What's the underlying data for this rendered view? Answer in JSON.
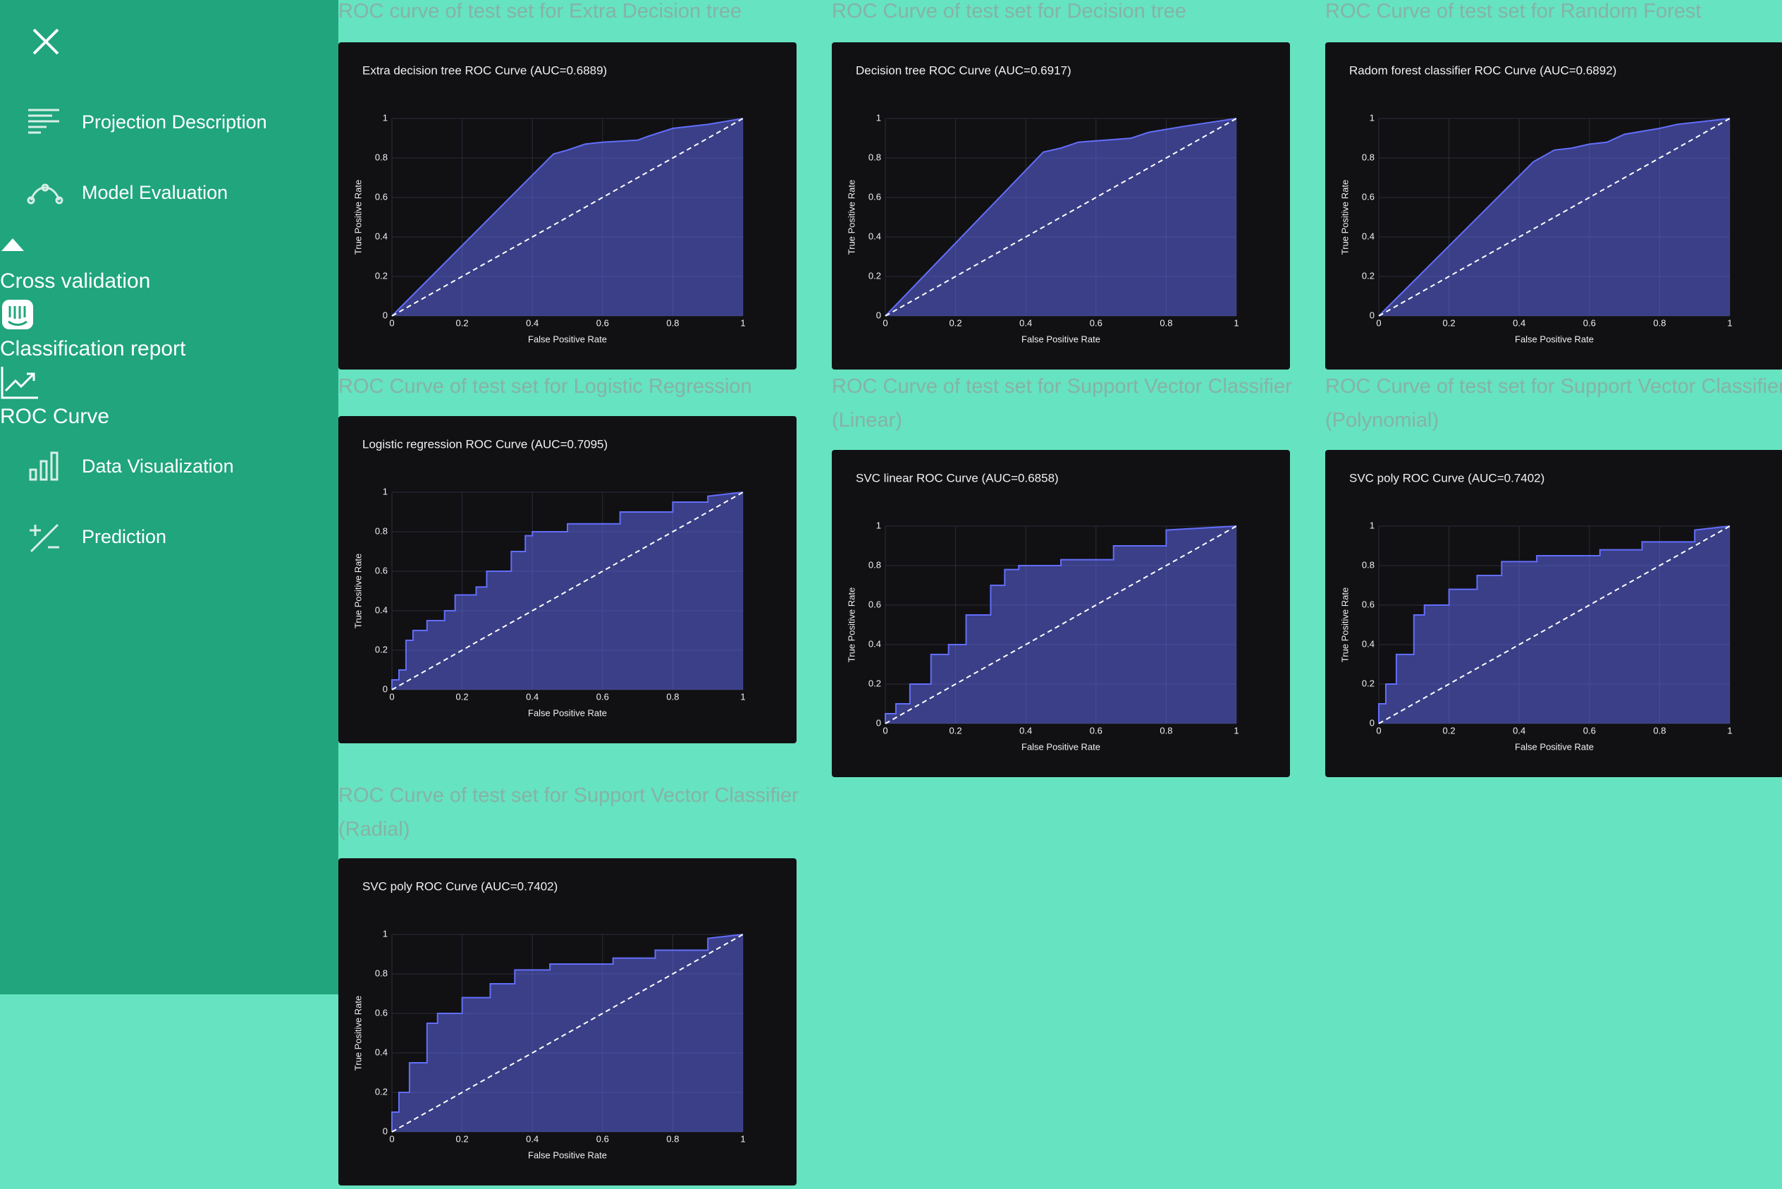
{
  "sidebar": {
    "items": [
      "Projection Description",
      "Model Evaluation",
      "Cross validation",
      "Classification report",
      "ROC Curve",
      "Data Visualization",
      "Prediction"
    ]
  },
  "chart_data": [
    {
      "type": "area",
      "heading": "ROC curve of test set for Extra Decision tree",
      "title": "Extra decision tree ROC Curve (AUC=0.6889)",
      "xlabel": "False Positive Rate",
      "ylabel": "True Positive Rate",
      "color": "#636efa",
      "grid": true,
      "xlim": [
        0,
        1
      ],
      "ylim": [
        0,
        1
      ],
      "xticks": [
        0,
        0.2,
        0.4,
        0.6,
        0.8,
        1
      ],
      "yticks": [
        0,
        0.2,
        0.4,
        0.6,
        0.8,
        1
      ],
      "series": [
        {
          "x": [
            0,
            0.46,
            0.5,
            0.55,
            0.6,
            0.7,
            0.73,
            0.8,
            0.9,
            1
          ],
          "values": [
            0,
            0.82,
            0.84,
            0.87,
            0.88,
            0.89,
            0.91,
            0.95,
            0.97,
            1
          ]
        }
      ]
    },
    {
      "type": "area",
      "heading": "ROC Curve of test set for Decision tree",
      "title": "Decision tree ROC Curve (AUC=0.6917)",
      "xlabel": "False Positive Rate",
      "ylabel": "True Positive Rate",
      "color": "#636efa",
      "grid": true,
      "xlim": [
        0,
        1
      ],
      "ylim": [
        0,
        1
      ],
      "xticks": [
        0,
        0.2,
        0.4,
        0.6,
        0.8,
        1
      ],
      "yticks": [
        0,
        0.2,
        0.4,
        0.6,
        0.8,
        1
      ],
      "series": [
        {
          "x": [
            0,
            0.45,
            0.5,
            0.55,
            0.7,
            0.75,
            0.85,
            1
          ],
          "values": [
            0,
            0.83,
            0.85,
            0.88,
            0.9,
            0.93,
            0.96,
            1
          ]
        }
      ]
    },
    {
      "type": "area",
      "heading": "ROC Curve of test set for Random Forest",
      "title": "Radom forest classifier ROC Curve (AUC=0.6892)",
      "xlabel": "False Positive Rate",
      "ylabel": "True Positive Rate",
      "color": "#636efa",
      "grid": true,
      "xlim": [
        0,
        1
      ],
      "ylim": [
        0,
        1
      ],
      "xticks": [
        0,
        0.2,
        0.4,
        0.6,
        0.8,
        1
      ],
      "yticks": [
        0,
        0.2,
        0.4,
        0.6,
        0.8,
        1
      ],
      "series": [
        {
          "x": [
            0,
            0.44,
            0.46,
            0.5,
            0.55,
            0.6,
            0.65,
            0.7,
            0.8,
            0.85,
            1
          ],
          "values": [
            0,
            0.78,
            0.8,
            0.84,
            0.85,
            0.87,
            0.88,
            0.92,
            0.95,
            0.97,
            1
          ]
        }
      ]
    },
    {
      "type": "area",
      "heading": "ROC Curve of test set for Logistic Regression",
      "title": "Logistic regression ROC Curve (AUC=0.7095)",
      "xlabel": "False Positive Rate",
      "ylabel": "True Positive Rate",
      "color": "#636efa",
      "grid": true,
      "xlim": [
        0,
        1
      ],
      "ylim": [
        0,
        1
      ],
      "xticks": [
        0,
        0.2,
        0.4,
        0.6,
        0.8,
        1
      ],
      "yticks": [
        0,
        0.2,
        0.4,
        0.6,
        0.8,
        1
      ],
      "series": [
        {
          "x": [
            0,
            0,
            0.02,
            0.02,
            0.04,
            0.04,
            0.06,
            0.06,
            0.1,
            0.1,
            0.15,
            0.15,
            0.18,
            0.18,
            0.24,
            0.24,
            0.27,
            0.27,
            0.34,
            0.34,
            0.38,
            0.38,
            0.4,
            0.4,
            0.5,
            0.5,
            0.65,
            0.65,
            0.8,
            0.8,
            0.9,
            0.9,
            1
          ],
          "values": [
            0,
            0.05,
            0.05,
            0.1,
            0.1,
            0.25,
            0.25,
            0.3,
            0.3,
            0.35,
            0.35,
            0.4,
            0.4,
            0.48,
            0.48,
            0.52,
            0.52,
            0.6,
            0.6,
            0.7,
            0.7,
            0.78,
            0.78,
            0.8,
            0.8,
            0.84,
            0.84,
            0.9,
            0.9,
            0.95,
            0.95,
            0.98,
            1
          ]
        }
      ]
    },
    {
      "type": "area",
      "heading": "ROC Curve of test set for Support Vector Classifier (Linear)",
      "title": "SVC linear ROC Curve (AUC=0.6858)",
      "xlabel": "False Positive Rate",
      "ylabel": "True Positive Rate",
      "color": "#636efa",
      "grid": true,
      "xlim": [
        0,
        1
      ],
      "ylim": [
        0,
        1
      ],
      "xticks": [
        0,
        0.2,
        0.4,
        0.6,
        0.8,
        1
      ],
      "yticks": [
        0,
        0.2,
        0.4,
        0.6,
        0.8,
        1
      ],
      "series": [
        {
          "x": [
            0,
            0,
            0.03,
            0.03,
            0.07,
            0.07,
            0.13,
            0.13,
            0.18,
            0.18,
            0.23,
            0.23,
            0.3,
            0.3,
            0.34,
            0.34,
            0.38,
            0.38,
            0.5,
            0.5,
            0.65,
            0.65,
            0.8,
            0.8,
            1
          ],
          "values": [
            0,
            0.05,
            0.05,
            0.1,
            0.1,
            0.2,
            0.2,
            0.35,
            0.35,
            0.4,
            0.4,
            0.55,
            0.55,
            0.7,
            0.7,
            0.78,
            0.78,
            0.8,
            0.8,
            0.83,
            0.83,
            0.9,
            0.9,
            0.98,
            1
          ]
        }
      ]
    },
    {
      "type": "area",
      "heading": "ROC Curve of test set for Support Vector Classifier (Polynomial)",
      "title": "SVC poly ROC Curve (AUC=0.7402)",
      "xlabel": "False Positive Rate",
      "ylabel": "True Positive Rate",
      "color": "#636efa",
      "grid": true,
      "xlim": [
        0,
        1
      ],
      "ylim": [
        0,
        1
      ],
      "xticks": [
        0,
        0.2,
        0.4,
        0.6,
        0.8,
        1
      ],
      "yticks": [
        0,
        0.2,
        0.4,
        0.6,
        0.8,
        1
      ],
      "series": [
        {
          "x": [
            0,
            0,
            0.02,
            0.02,
            0.05,
            0.05,
            0.1,
            0.1,
            0.13,
            0.13,
            0.2,
            0.2,
            0.28,
            0.28,
            0.35,
            0.35,
            0.45,
            0.45,
            0.63,
            0.63,
            0.75,
            0.75,
            0.9,
            0.9,
            1
          ],
          "values": [
            0,
            0.1,
            0.1,
            0.2,
            0.2,
            0.35,
            0.35,
            0.55,
            0.55,
            0.6,
            0.6,
            0.68,
            0.68,
            0.75,
            0.75,
            0.82,
            0.82,
            0.85,
            0.85,
            0.88,
            0.88,
            0.92,
            0.92,
            0.98,
            1
          ]
        }
      ]
    },
    {
      "type": "area",
      "heading": "ROC Curve of test set for Support Vector Classifier (Radial)",
      "title": "SVC poly ROC Curve (AUC=0.7402)",
      "xlabel": "False Positive Rate",
      "ylabel": "True Positive Rate",
      "color": "#636efa",
      "grid": true,
      "xlim": [
        0,
        1
      ],
      "ylim": [
        0,
        1
      ],
      "xticks": [
        0,
        0.2,
        0.4,
        0.6,
        0.8,
        1
      ],
      "yticks": [
        0,
        0.2,
        0.4,
        0.6,
        0.8,
        1
      ],
      "series": [
        {
          "x": [
            0,
            0,
            0.02,
            0.02,
            0.05,
            0.05,
            0.1,
            0.1,
            0.13,
            0.13,
            0.2,
            0.2,
            0.28,
            0.28,
            0.35,
            0.35,
            0.45,
            0.45,
            0.63,
            0.63,
            0.75,
            0.75,
            0.9,
            0.9,
            1
          ],
          "values": [
            0,
            0.1,
            0.1,
            0.2,
            0.2,
            0.35,
            0.35,
            0.55,
            0.55,
            0.6,
            0.6,
            0.68,
            0.68,
            0.75,
            0.75,
            0.82,
            0.82,
            0.85,
            0.85,
            0.88,
            0.88,
            0.92,
            0.92,
            0.98,
            1
          ]
        }
      ]
    }
  ]
}
